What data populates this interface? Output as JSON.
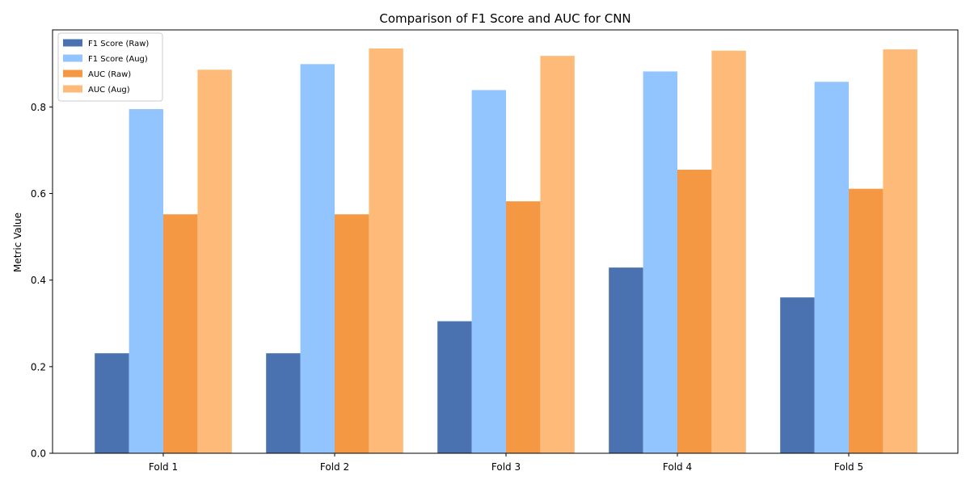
{
  "chart_data": {
    "type": "bar",
    "title": "Comparison of F1 Score and AUC for CNN",
    "xlabel": "",
    "ylabel": "Metric Value",
    "categories": [
      "Fold 1",
      "Fold 2",
      "Fold 3",
      "Fold 4",
      "Fold 5"
    ],
    "ylim": [
      0,
      0.978
    ],
    "yticks": [
      0.0,
      0.2,
      0.4,
      0.6,
      0.8
    ],
    "ytick_labels": [
      "0.0",
      "0.2",
      "0.4",
      "0.6",
      "0.8"
    ],
    "grid": false,
    "legend_position": "top-left",
    "series": [
      {
        "name": "F1 Score (Raw)",
        "color": "#4a72b0",
        "values": [
          0.231,
          0.231,
          0.305,
          0.429,
          0.36
        ]
      },
      {
        "name": "F1 Score (Aug)",
        "color": "#92c5fd",
        "values": [
          0.795,
          0.899,
          0.839,
          0.882,
          0.858
        ]
      },
      {
        "name": "AUC (Raw)",
        "color": "#f49843",
        "values": [
          0.552,
          0.552,
          0.582,
          0.655,
          0.611
        ]
      },
      {
        "name": "AUC (Aug)",
        "color": "#feba78",
        "values": [
          0.886,
          0.935,
          0.918,
          0.93,
          0.933
        ]
      }
    ]
  }
}
